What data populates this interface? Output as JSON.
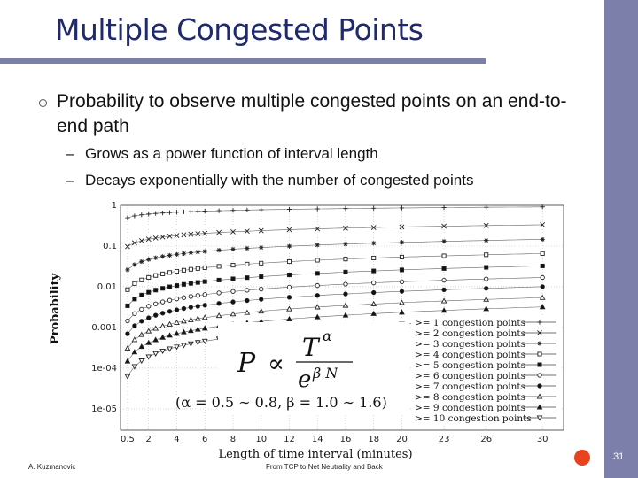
{
  "slide": {
    "title": "Multiple Congested Points",
    "bullet": "Probability to observe multiple congested points on an end-to-end path",
    "subbullets": [
      "Grows as a power function of interval length",
      "Decays exponentially with the number of congested points"
    ],
    "dash": "–",
    "footer_left": "A. Kuzmanovic",
    "footer_center": "From TCP to Net Neutrality and Back",
    "page_number": "31"
  },
  "colors": {
    "accent": "#7b7faa",
    "title": "#1f2a6e",
    "dot": "#e8431e"
  },
  "chart_data": {
    "type": "scatter",
    "xlabel": "Length of time interval (minutes)",
    "ylabel": "Probability",
    "x_ticks": [
      "0.5",
      "2",
      "4",
      "6",
      "8",
      "10",
      "12",
      "14",
      "16",
      "18",
      "20",
      "23",
      "26",
      "30"
    ],
    "y_ticks": [
      "1e-05",
      "1e-04",
      "0.001",
      "0.01",
      "0.1",
      "1"
    ],
    "ylim": [
      3e-06,
      1
    ],
    "y_scale": "log",
    "legend_position": "bottom-right",
    "x": [
      0.5,
      1,
      1.5,
      2,
      2.5,
      3,
      3.5,
      4,
      4.5,
      5,
      5.5,
      6,
      7,
      8,
      9,
      10,
      12,
      14,
      16,
      18,
      20,
      23,
      26,
      30
    ],
    "series": [
      {
        "name": ">= 1 congestion points",
        "marker": "plus",
        "a": 0.55,
        "p": 0.15
      },
      {
        "name": ">= 2 congestion points",
        "marker": "cross",
        "a": 0.12,
        "p": 0.3
      },
      {
        "name": ">= 3 congestion points",
        "marker": "star",
        "a": 0.035,
        "p": 0.42
      },
      {
        "name": ">= 4 congestion points",
        "marker": "square-open",
        "a": 0.012,
        "p": 0.5
      },
      {
        "name": ">= 5 congestion points",
        "marker": "square-filled",
        "a": 0.005,
        "p": 0.55
      },
      {
        "name": ">= 6 congestion points",
        "marker": "circle-open",
        "a": 0.0022,
        "p": 0.6
      },
      {
        "name": ">= 7 congestion points",
        "marker": "circle-filled",
        "a": 0.0011,
        "p": 0.65
      },
      {
        "name": ">= 8 congestion points",
        "marker": "triangle-open",
        "a": 0.0005,
        "p": 0.7
      },
      {
        "name": ">= 9 congestion points",
        "marker": "triangle-filled",
        "a": 0.00025,
        "p": 0.75
      },
      {
        "name": ">= 10 congestion points",
        "marker": "triangle-down-open",
        "a": 0.00011,
        "p": 0.8
      }
    ],
    "formula": {
      "lhs": "P",
      "proportional": "∝",
      "numerator": "T",
      "numerator_exp": "α",
      "denominator": "e",
      "denominator_exp": "β N",
      "params": "(α = 0.5 ∼ 0.8,  β = 1.0 ∼ 1.6)"
    }
  }
}
